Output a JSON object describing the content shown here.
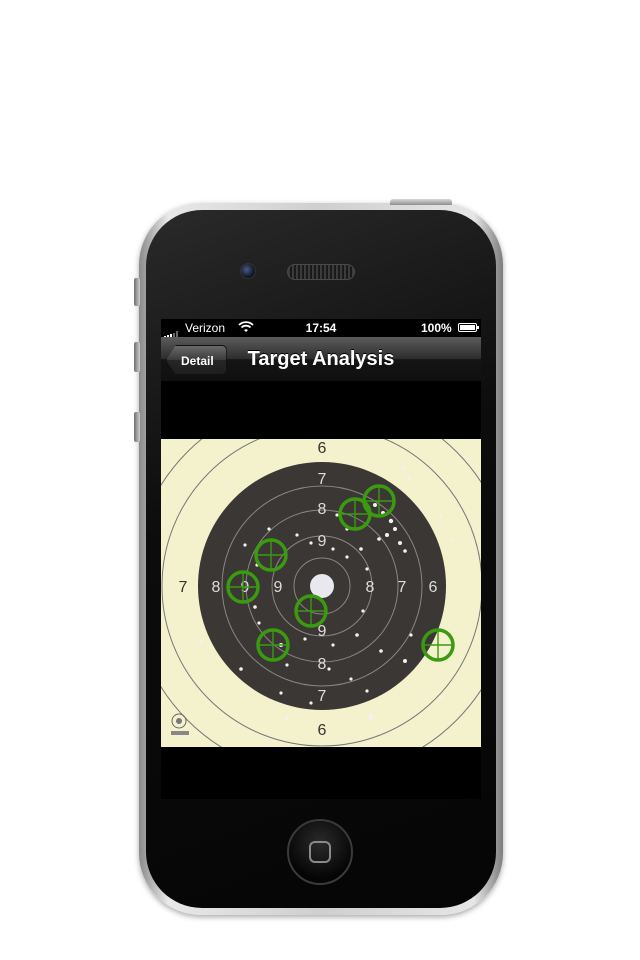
{
  "status_bar": {
    "carrier": "Verizon",
    "time": "17:54",
    "battery": "100%"
  },
  "nav": {
    "back_label": "Detail",
    "title": "Target Analysis"
  },
  "target": {
    "ring_numbers": [
      "6",
      "7",
      "8",
      "9",
      "9",
      "8",
      "7",
      "6",
      "7",
      "8",
      "9",
      "9",
      "8",
      "7",
      "6"
    ],
    "colors": {
      "paper": "#f4f2cc",
      "black_zone": "#3a3734",
      "hit_marker": "#3a9a10"
    },
    "hit_markers": 7
  }
}
